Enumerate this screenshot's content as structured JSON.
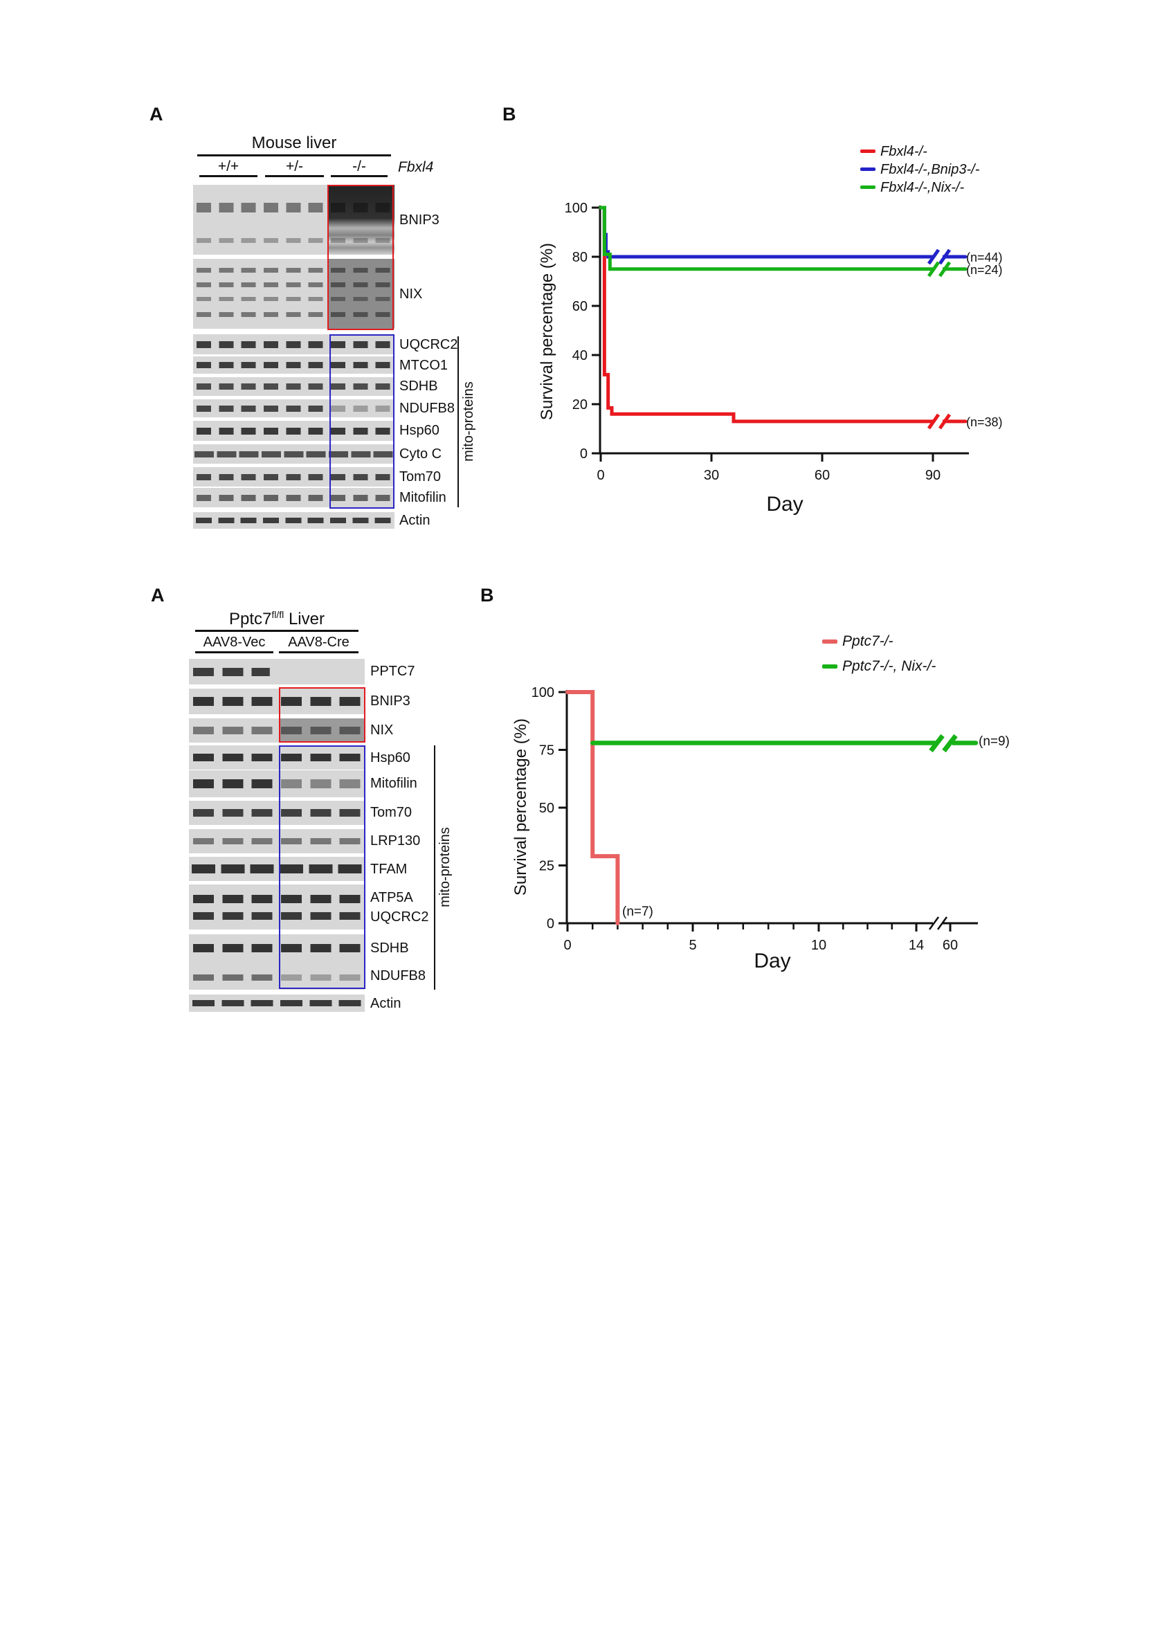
{
  "figure_top": {
    "panel_a": {
      "label": "A",
      "title": "Mouse liver",
      "genotype_groups": [
        "+/+",
        "+/-",
        "-/-"
      ],
      "gene_label": "Fbxl4",
      "protein_rows": [
        "BNIP3",
        "NIX",
        "UQCRC2",
        "MTCO1",
        "SDHB",
        "NDUFB8",
        "Hsp60",
        "Cyto C",
        "Tom70",
        "Mitofilin",
        "Actin"
      ],
      "bracket_label": "mito-proteins",
      "highlight_box_colors": {
        "red": "#e01b20",
        "blue": "#2a25c4"
      }
    },
    "panel_b": {
      "label": "B",
      "legend": [
        {
          "label": "Fbxl4-/-",
          "color": "#e8191f"
        },
        {
          "label": "Fbxl4-/-,Bnip3-/-",
          "color": "#2323c8"
        },
        {
          "label": "Fbxl4-/-,Nix-/-",
          "color": "#17b217"
        }
      ]
    }
  },
  "figure_bottom": {
    "panel_a": {
      "label": "A",
      "title_gene": "Pptc7",
      "title_superscript": "fl/fl",
      "title_suffix": " Liver",
      "treatment_groups": [
        "AAV8-Vec",
        "AAV8-Cre"
      ],
      "protein_rows": [
        "PPTC7",
        "BNIP3",
        "NIX",
        "Hsp60",
        "Mitofilin",
        "Tom70",
        "LRP130",
        "TFAM",
        "ATP5A",
        "UQCRC2",
        "SDHB",
        "NDUFB8",
        "Actin"
      ],
      "bracket_label": "mito-proteins",
      "highlight_box_colors": {
        "red": "#e01b20",
        "blue": "#2a25c4"
      }
    },
    "panel_b": {
      "label": "B",
      "legend": [
        {
          "label": "Pptc7-/-",
          "color": "#e86060"
        },
        {
          "label": "Pptc7-/-, Nix-/-",
          "color": "#17b217"
        }
      ]
    }
  },
  "chart_data": [
    {
      "type": "line",
      "xlabel": "Day",
      "ylabel": "Survival percentage (%)",
      "x_ticks": [
        0,
        30,
        60,
        90
      ],
      "y_ticks": [
        0,
        20,
        40,
        60,
        80,
        100
      ],
      "xlim": [
        0,
        99
      ],
      "ylim": [
        0,
        100
      ],
      "grid": false,
      "legend_position": "top-right",
      "break_marks": {
        "curves_at_day": 91
      },
      "series": [
        {
          "name": "Fbxl4-/-",
          "color": "#e8191f",
          "n_label": "(n=38)",
          "steps": [
            [
              0,
              100
            ],
            [
              1,
              100
            ],
            [
              1,
              32
            ],
            [
              2,
              32
            ],
            [
              2,
              18.5
            ],
            [
              3,
              18.5
            ],
            [
              3,
              16
            ],
            [
              36,
              16
            ],
            [
              36,
              13
            ],
            [
              99,
              13
            ]
          ]
        },
        {
          "name": "Fbxl4-/-,Bnip3-/-",
          "color": "#2323c8",
          "n_label": "(n=44)",
          "steps": [
            [
              0,
              100
            ],
            [
              1,
              100
            ],
            [
              1,
              89
            ],
            [
              1.4,
              89
            ],
            [
              1.4,
              82
            ],
            [
              2,
              82
            ],
            [
              2,
              80
            ],
            [
              99,
              80
            ]
          ]
        },
        {
          "name": "Fbxl4-/-,Nix-/-",
          "color": "#17b217",
          "n_label": "(n=24)",
          "steps": [
            [
              0,
              100
            ],
            [
              1,
              100
            ],
            [
              1,
              81
            ],
            [
              2.5,
              81
            ],
            [
              2.5,
              75
            ],
            [
              99,
              75
            ]
          ]
        }
      ]
    },
    {
      "type": "line",
      "xlabel": "Day",
      "ylabel": "Survival percentage (%)",
      "x_ticks": [
        0,
        5,
        10,
        14,
        60
      ],
      "x_minor_ticks": [
        1,
        2,
        3,
        4,
        6,
        7,
        8,
        9,
        11,
        12,
        13
      ],
      "y_ticks": [
        0,
        25,
        50,
        75,
        100
      ],
      "xlim": [
        0,
        65
      ],
      "ylim": [
        0,
        100
      ],
      "grid": false,
      "legend_position": "top-right",
      "break_marks": {
        "axis_between": [
          14,
          60
        ],
        "curves_at_day": 57
      },
      "series": [
        {
          "name": "Pptc7-/-",
          "color": "#e86060",
          "n_label": "(n=7)",
          "width": 6,
          "steps": [
            [
              0,
              100
            ],
            [
              1,
              100
            ],
            [
              1,
              29
            ],
            [
              2,
              29
            ],
            [
              2,
              0
            ]
          ]
        },
        {
          "name": "Pptc7-/-, Nix-/-",
          "color": "#17b217",
          "n_label": "(n=9)",
          "width": 6.5,
          "steps": [
            [
              1,
              78
            ],
            [
              65,
              78
            ]
          ]
        }
      ]
    }
  ]
}
